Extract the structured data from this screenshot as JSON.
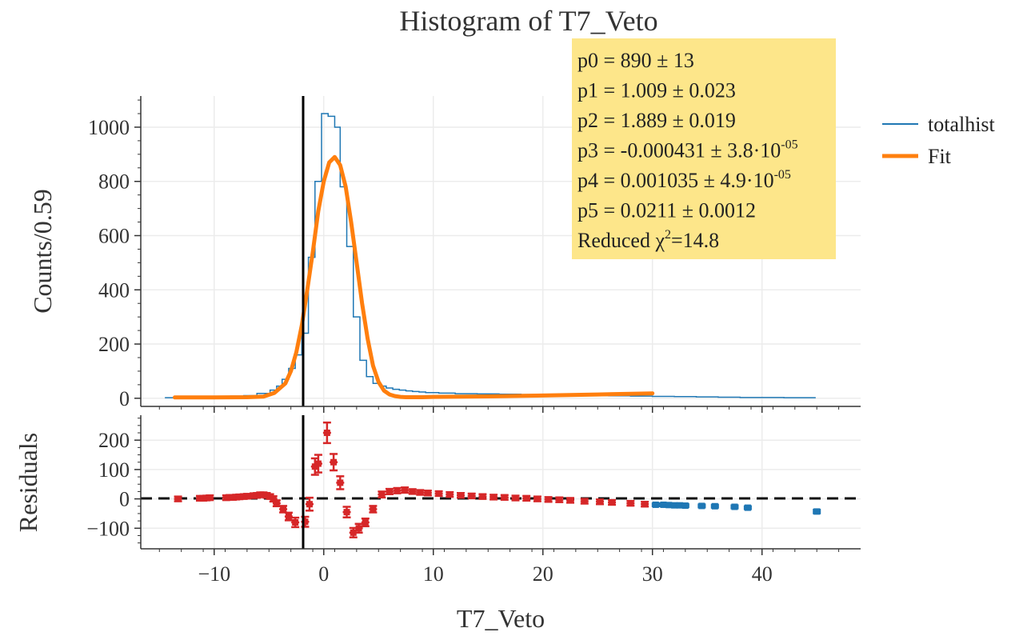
{
  "chart_data": [
    {
      "type": "histogram",
      "title": "Histogram of T7_Veto",
      "xlabel": "",
      "ylabel": "Counts/0.59",
      "xlim": [
        -16.7,
        49
      ],
      "ylim": [
        -30,
        1115
      ],
      "yticks": [
        0,
        200,
        400,
        600,
        800,
        1000
      ],
      "grid": true,
      "legend": {
        "placement": "right-outside",
        "entries": [
          {
            "name": "totalhist",
            "color": "#1f77b4",
            "kind": "thin-line"
          },
          {
            "name": "Fit",
            "color": "#ff7f0e",
            "kind": "thick-line"
          }
        ]
      },
      "annotation_box": {
        "background": "#fde68a",
        "lines": [
          {
            "text": "p0 = 890 ± 13"
          },
          {
            "text": "p1 = 1.009 ± 0.023"
          },
          {
            "text": "p2 = 1.889 ± 0.019"
          },
          {
            "text": "p3 = -0.000431 ± 3.8·10",
            "sup": "-05"
          },
          {
            "text": "p4 = 0.001035 ± 4.9·10",
            "sup": "-05"
          },
          {
            "text": "p5 = 0.0211 ± 0.0012"
          },
          {
            "text": "Reduced χ",
            "sup": "2",
            "tail": "=14.8"
          }
        ]
      },
      "vertical_line_x": -2.1,
      "series": [
        {
          "name": "totalhist",
          "color": "#1f77b4",
          "kind": "step",
          "x": [
            -14.5,
            -13.3,
            -12.1,
            -10.9,
            -9.7,
            -8.5,
            -7.3,
            -6.1,
            -4.9,
            -4.3,
            -3.8,
            -3.2,
            -2.6,
            -2.0,
            -1.4,
            -0.8,
            -0.2,
            0.4,
            1.0,
            1.5,
            2.1,
            2.7,
            3.3,
            3.9,
            4.5,
            5.1,
            5.7,
            6.3,
            6.9,
            7.5,
            8.1,
            8.7,
            9.3,
            10.5,
            12.0,
            14.0,
            16.0,
            18.0,
            20.0,
            22.0,
            24.0,
            26.0,
            28.0,
            30.0,
            32.0,
            34.0,
            36.0,
            38.0,
            40.0,
            42.0,
            44.9
          ],
          "y": [
            2,
            3,
            4,
            5,
            6,
            8,
            10,
            18,
            30,
            45,
            70,
            110,
            160,
            240,
            520,
            800,
            1050,
            1040,
            1000,
            780,
            560,
            300,
            140,
            80,
            55,
            45,
            38,
            33,
            30,
            27,
            25,
            23,
            21,
            19,
            17,
            16,
            15,
            14,
            12,
            11,
            10,
            9,
            8,
            7,
            6,
            5,
            4,
            3,
            3,
            2,
            2
          ]
        },
        {
          "name": "Fit",
          "color": "#ff7f0e",
          "kind": "line",
          "x": [
            -13.6,
            -10,
            -7,
            -5.5,
            -4.5,
            -3.5,
            -3.0,
            -2.5,
            -2.0,
            -1.5,
            -1.0,
            -0.5,
            0.0,
            0.5,
            1.0,
            1.5,
            2.0,
            2.5,
            3.0,
            3.5,
            4.0,
            4.5,
            5.0,
            5.5,
            6.0,
            6.5,
            7.0,
            7.5,
            8.0,
            9.0,
            10.0,
            15.0,
            20.0,
            25.0,
            30.0
          ],
          "y": [
            3,
            3,
            4,
            6,
            20,
            55,
            100,
            170,
            270,
            400,
            540,
            690,
            800,
            870,
            890,
            860,
            780,
            650,
            500,
            350,
            220,
            120,
            60,
            28,
            14,
            8,
            5,
            4,
            4,
            4,
            5,
            7,
            10,
            14,
            18
          ]
        }
      ]
    },
    {
      "type": "scatter",
      "xlabel": "T7_Veto",
      "ylabel": "Residuals",
      "xlim": [
        -16.7,
        49
      ],
      "ylim": [
        -170,
        285
      ],
      "yticks": [
        -100,
        0,
        100,
        200
      ],
      "xticks": [
        -10,
        0,
        10,
        20,
        30,
        40
      ],
      "grid": true,
      "zero_line": {
        "y": 0,
        "style": "dashed"
      },
      "vertical_line_x": -2.1,
      "series": [
        {
          "name": "",
          "color": "#d62728",
          "x": [
            -13.3,
            -11.3,
            -11.0,
            -10.7,
            -10.4,
            -8.9,
            -8.6,
            -8.3,
            -8.0,
            -7.7,
            -7.3,
            -7.0,
            -6.4,
            -6.1,
            -5.8,
            -5.5,
            -5.2,
            -4.9,
            -4.6,
            -4.3,
            -3.7,
            -3.2,
            -2.6,
            -1.7,
            -1.3,
            -0.8,
            -0.5,
            0.3,
            0.9,
            1.5,
            2.1,
            2.7,
            3.2,
            3.8,
            4.5,
            5.3,
            6.0,
            6.7,
            7.4,
            8.1,
            8.8,
            9.5,
            10.5,
            11.5,
            12.5,
            13.5,
            14.5,
            15.5,
            16.5,
            17.5,
            18.5,
            19.5,
            20.5,
            21.5,
            22.5,
            23.8,
            25.2,
            26.3,
            28.0,
            29.3
          ],
          "y": [
            0,
            2,
            2,
            3,
            4,
            4,
            5,
            5,
            6,
            7,
            8,
            9,
            11,
            12,
            14,
            14,
            12,
            8,
            0,
            -15,
            -35,
            -60,
            -80,
            -78,
            -18,
            110,
            120,
            225,
            125,
            55,
            -45,
            -115,
            -100,
            -80,
            -35,
            15,
            25,
            28,
            30,
            25,
            22,
            20,
            18,
            15,
            12,
            10,
            8,
            6,
            5,
            3,
            2,
            0,
            -2,
            -3,
            -5,
            -8,
            -10,
            -12,
            -15,
            -18
          ],
          "err": [
            8,
            8,
            8,
            8,
            8,
            8,
            8,
            8,
            8,
            8,
            8,
            8,
            8,
            8,
            8,
            8,
            8,
            8,
            9,
            10,
            11,
            13,
            16,
            17,
            22,
            28,
            30,
            35,
            28,
            22,
            18,
            16,
            15,
            13,
            11,
            10,
            9,
            9,
            9,
            8,
            8,
            8,
            8,
            8,
            8,
            8,
            8,
            8,
            8,
            8,
            8,
            8,
            8,
            8,
            8,
            8,
            8,
            8,
            8,
            8
          ]
        },
        {
          "name": "",
          "color": "#1f77b4",
          "x": [
            30.3,
            31.0,
            31.5,
            32.0,
            32.5,
            33.0,
            34.5,
            35.7,
            37.5,
            38.7,
            45.0
          ],
          "y": [
            -20,
            -20,
            -21,
            -22,
            -22,
            -23,
            -24,
            -25,
            -27,
            -30,
            -43
          ],
          "err": [
            5,
            5,
            5,
            5,
            5,
            5,
            5,
            5,
            5,
            5,
            6
          ]
        }
      ]
    }
  ]
}
